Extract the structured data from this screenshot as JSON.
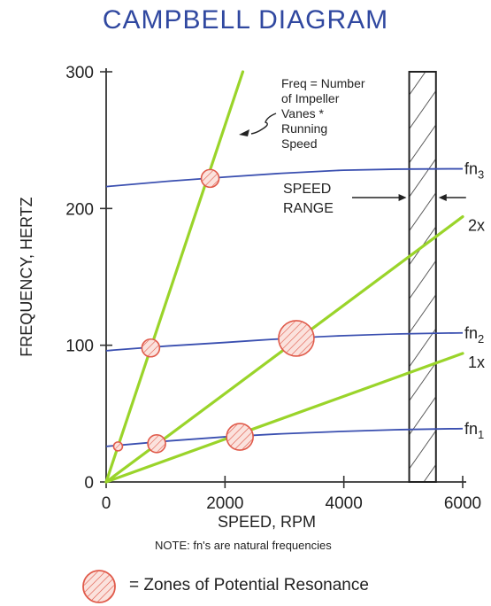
{
  "title": "CAMPBELL DIAGRAM",
  "note": "NOTE:   fn's are natural frequencies",
  "legend": "=  Zones of Potential Resonance",
  "colors": {
    "title": "#3048a0",
    "natural_freq": "#3a4fb0",
    "excitation": "#9ad42a",
    "resonance": "#e05a4a"
  },
  "chart_data": {
    "type": "line",
    "xlabel": "SPEED,  RPM",
    "ylabel": "FREQUENCY,  HERTZ",
    "xlim": [
      0,
      6000
    ],
    "ylim": [
      0,
      300
    ],
    "x_ticks": [
      "0",
      "2000",
      "4000",
      "6000"
    ],
    "y_ticks": [
      "0",
      "100",
      "200",
      "300"
    ],
    "natural_frequencies": [
      {
        "name": "fn1",
        "label_base": "fn",
        "label_sub": "1",
        "points": [
          [
            0,
            26
          ],
          [
            2000,
            33
          ],
          [
            4000,
            37
          ],
          [
            6000,
            39
          ]
        ]
      },
      {
        "name": "fn2",
        "label_base": "fn",
        "label_sub": "2",
        "points": [
          [
            0,
            96
          ],
          [
            2000,
            102
          ],
          [
            4000,
            107
          ],
          [
            6000,
            109
          ]
        ]
      },
      {
        "name": "fn3",
        "label_base": "fn",
        "label_sub": "3",
        "points": [
          [
            0,
            216
          ],
          [
            2000,
            223
          ],
          [
            4000,
            228
          ],
          [
            6000,
            229
          ]
        ]
      }
    ],
    "excitation_lines": [
      {
        "name": "1x",
        "label": "1x",
        "end": [
          6000,
          94
        ]
      },
      {
        "name": "2x",
        "label": "2x",
        "end": [
          6000,
          194
        ]
      },
      {
        "name": "vanes",
        "label": "",
        "end": [
          2300,
          300
        ]
      }
    ],
    "speed_range": {
      "label_lines": [
        "SPEED",
        "RANGE"
      ],
      "min": 5100,
      "max": 5550
    },
    "annotation": {
      "lines": [
        "Freq  =  Number",
        "of  Impeller",
        "Vanes  *",
        "Running",
        "Speed"
      ]
    },
    "resonance_points": [
      {
        "x": 200,
        "y": 26,
        "size": "small"
      },
      {
        "x": 850,
        "y": 28,
        "size": "medium"
      },
      {
        "x": 2250,
        "y": 33,
        "size": "large"
      },
      {
        "x": 750,
        "y": 98,
        "size": "medium"
      },
      {
        "x": 3200,
        "y": 105,
        "size": "xlarge"
      },
      {
        "x": 1750,
        "y": 222,
        "size": "medium"
      }
    ]
  }
}
